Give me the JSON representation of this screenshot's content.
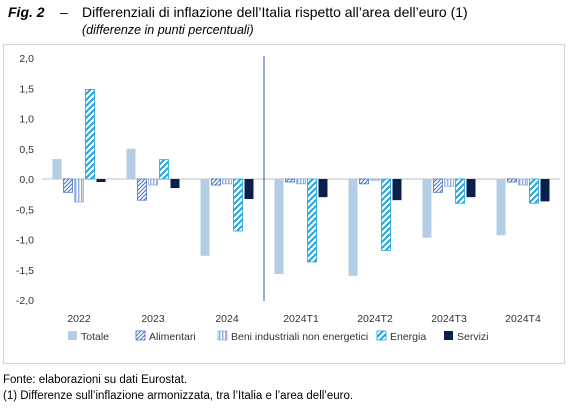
{
  "figure": {
    "label": "Fig. 2",
    "dash": "–",
    "title": "Differenziali di inflazione dell’Italia rispetto all’area dell’euro (1)",
    "subtitle": "(differenze in punti percentuali)"
  },
  "chart_data": {
    "type": "bar",
    "categories": [
      "2022",
      "2023",
      "2024",
      "2024T1",
      "2024T2",
      "2024T3",
      "2024T4"
    ],
    "series": [
      {
        "name": "Totale",
        "values": [
          0.33,
          0.5,
          -1.27,
          -1.57,
          -1.6,
          -0.97,
          -0.93
        ],
        "color": "#b4cde6",
        "pattern": "solid"
      },
      {
        "name": "Alimentari",
        "values": [
          -0.22,
          -0.35,
          -0.1,
          -0.05,
          -0.08,
          -0.22,
          -0.05
        ],
        "color": "#4472c4",
        "pattern": "diagonal-lines"
      },
      {
        "name": "Beni industriali non energetici",
        "values": [
          -0.38,
          -0.1,
          -0.08,
          -0.08,
          -0.02,
          -0.12,
          -0.1
        ],
        "color": "#8faadc",
        "pattern": "vertical-lines"
      },
      {
        "name": "Energia",
        "values": [
          1.48,
          0.32,
          -0.86,
          -1.37,
          -1.18,
          -0.4,
          -0.4
        ],
        "color": "#1fa3df",
        "pattern": "wide-diagonal"
      },
      {
        "name": "Servizi",
        "values": [
          -0.05,
          -0.15,
          -0.33,
          -0.3,
          -0.35,
          -0.3,
          -0.37
        ],
        "color": "#0b1f4d",
        "pattern": "solid"
      }
    ],
    "ylim": [
      -2.0,
      2.0
    ],
    "yticks": [
      "2,0",
      "1,5",
      "1,0",
      "0,5",
      "0,0",
      "-0,5",
      "-1,0",
      "-1,5",
      "-2,0"
    ],
    "ytick_values": [
      2.0,
      1.5,
      1.0,
      0.5,
      0.0,
      -0.5,
      -1.0,
      -1.5,
      -2.0
    ],
    "separator_after_category": "2024",
    "grid": false,
    "legend_position": "bottom"
  },
  "notes": {
    "source": "Fonte: elaborazioni su dati Eurostat.",
    "footnote": "(1) Differenze sull’inflazione armonizzata, tra l’Italia e l’area dell’euro."
  }
}
